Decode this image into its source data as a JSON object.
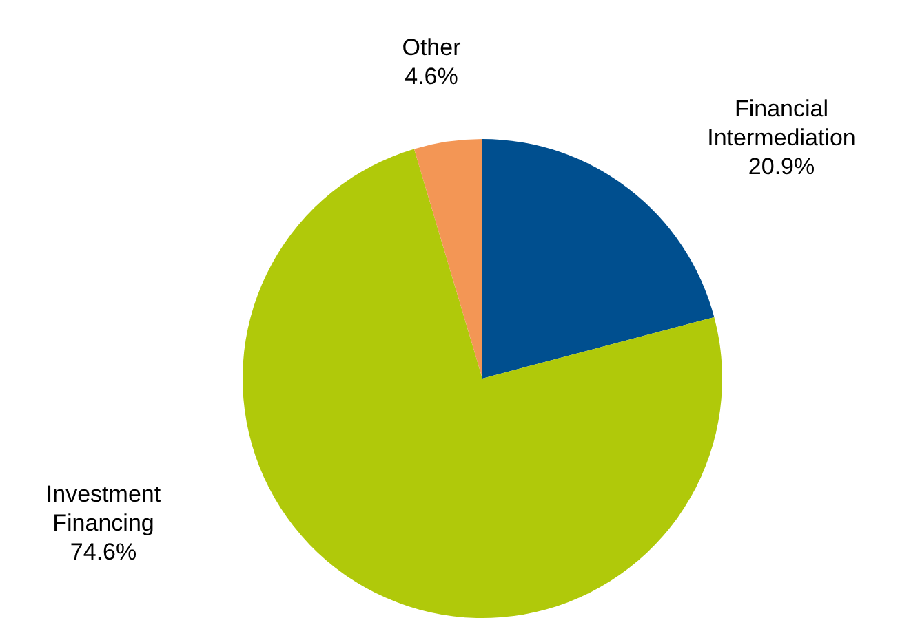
{
  "chart_data": {
    "type": "pie",
    "categories": [
      "Financial\nIntermediation",
      "Investment\nFinancing",
      "Other"
    ],
    "values": [
      20.9,
      74.6,
      4.6
    ],
    "colors": [
      "#004f8f",
      "#b0c90a",
      "#f39655"
    ],
    "value_labels": [
      "20.9%",
      "74.6%",
      "4.6%"
    ],
    "legend": false
  }
}
